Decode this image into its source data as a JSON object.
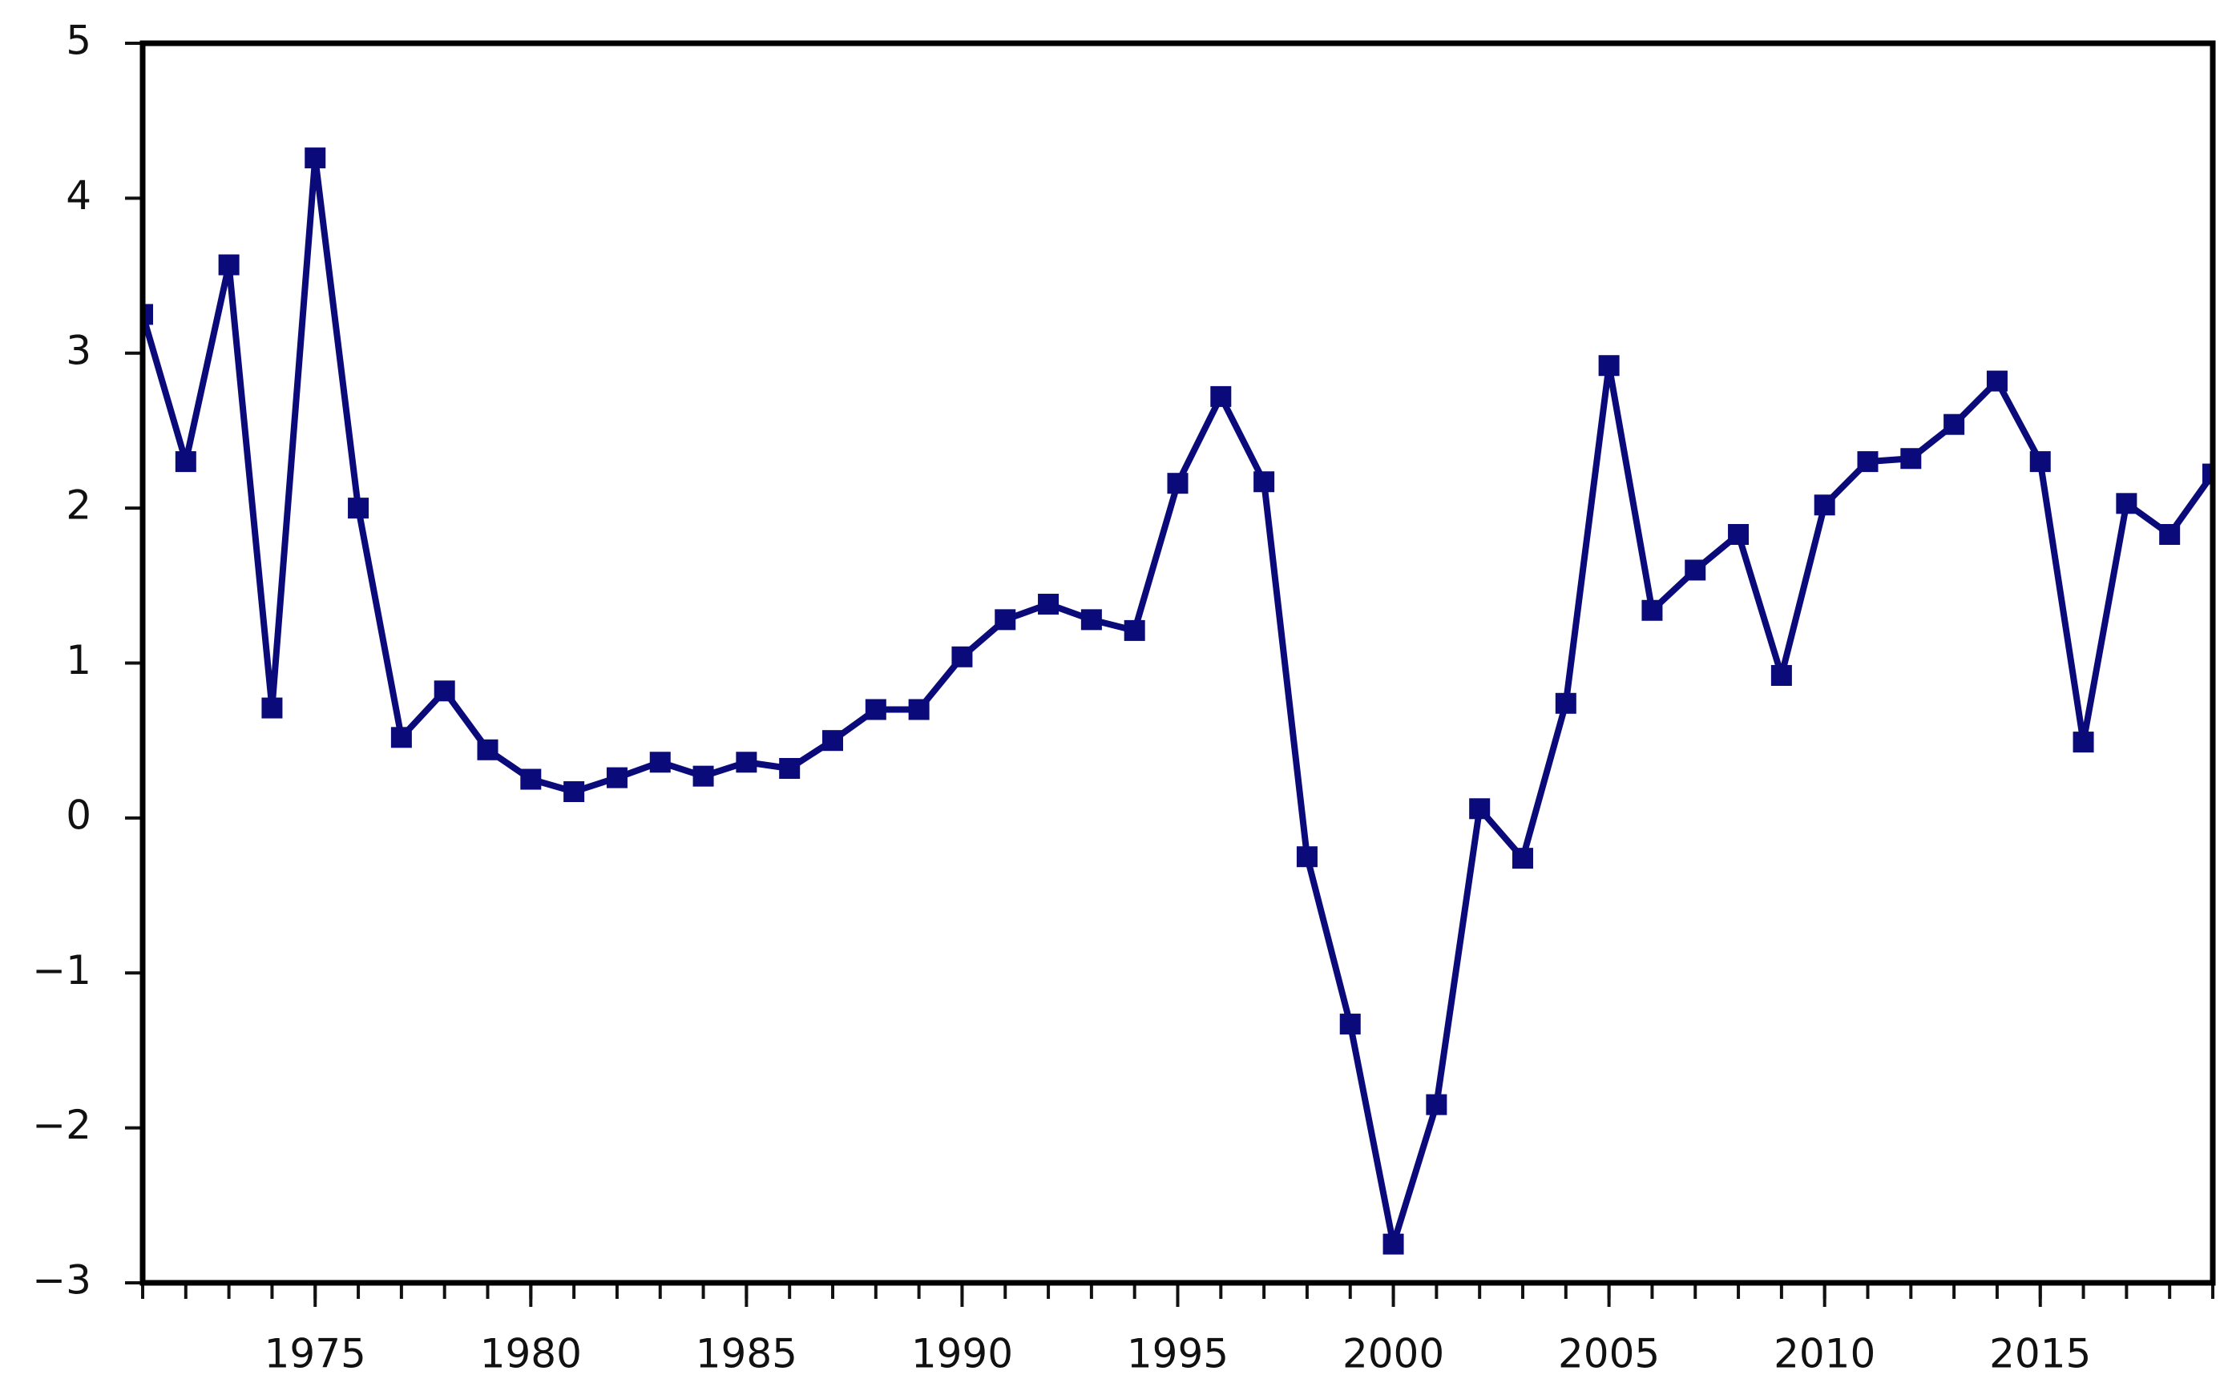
{
  "chart_data": {
    "type": "line",
    "x": [
      1971,
      1972,
      1973,
      1974,
      1975,
      1976,
      1977,
      1978,
      1979,
      1980,
      1981,
      1982,
      1983,
      1984,
      1985,
      1986,
      1987,
      1988,
      1989,
      1990,
      1991,
      1992,
      1993,
      1994,
      1995,
      1996,
      1997,
      1998,
      1999,
      2000,
      2001,
      2002,
      2003,
      2004,
      2005,
      2006,
      2007,
      2008,
      2009,
      2010,
      2011,
      2012,
      2013,
      2014,
      2015,
      2016,
      2017,
      2018,
      2019
    ],
    "series": [
      {
        "color": "#0a0a7a",
        "values": [
          3.25,
          2.3,
          3.57,
          0.71,
          4.26,
          2.0,
          0.52,
          0.82,
          0.44,
          0.25,
          0.17,
          0.26,
          0.36,
          0.27,
          0.36,
          0.32,
          0.5,
          0.7,
          0.7,
          1.04,
          1.28,
          1.38,
          1.28,
          1.21,
          2.16,
          2.72,
          2.17,
          -0.25,
          -1.33,
          -2.75,
          -1.85,
          0.06,
          -0.26,
          0.74,
          2.92,
          1.34,
          1.6,
          1.83,
          0.92,
          2.02,
          2.3,
          2.32,
          2.54,
          2.82,
          2.3,
          0.49,
          2.03,
          1.83,
          2.22
        ]
      }
    ],
    "xlim": [
      1971,
      2019
    ],
    "xticks": [
      1975,
      1980,
      1985,
      1990,
      1995,
      2000,
      2005,
      2010,
      2015
    ],
    "ylim": [
      -3,
      5
    ],
    "yticks": [
      {
        "value": -3,
        "label": "−3"
      },
      {
        "value": -2,
        "label": "−2"
      },
      {
        "value": -1,
        "label": "−1"
      },
      0,
      1,
      2,
      3,
      4,
      5
    ]
  }
}
